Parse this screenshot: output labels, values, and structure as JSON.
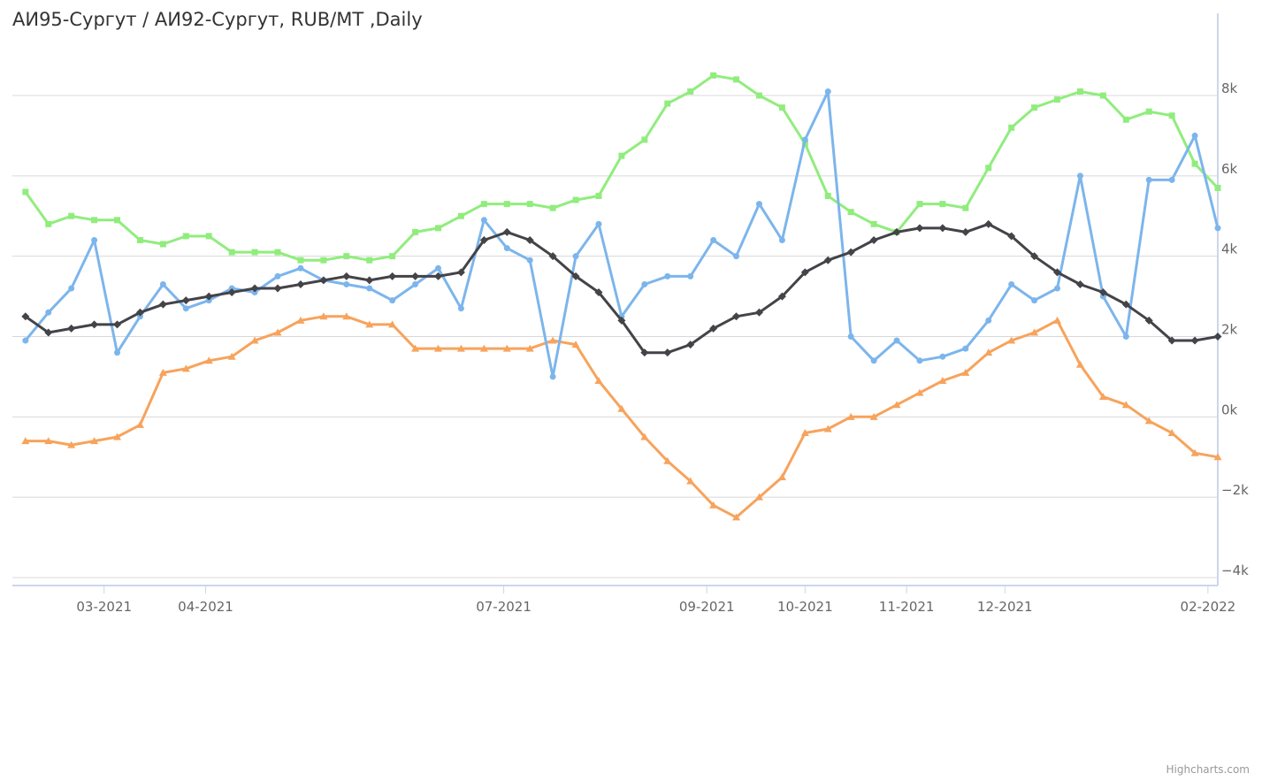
{
  "chart_data": {
    "type": "line",
    "title": "АИ95-Сургут / АИ92-Сургут, RUB/MT ,Daily",
    "credits": "Highcharts.com",
    "x_dates": [
      "2021-02-05",
      "2021-02-12",
      "2021-02-19",
      "2021-02-26",
      "2021-03-05",
      "2021-03-12",
      "2021-03-19",
      "2021-03-26",
      "2021-04-02",
      "2021-04-09",
      "2021-04-16",
      "2021-04-23",
      "2021-04-30",
      "2021-05-07",
      "2021-05-14",
      "2021-05-21",
      "2021-05-28",
      "2021-06-04",
      "2021-06-11",
      "2021-06-18",
      "2021-06-25",
      "2021-07-02",
      "2021-07-09",
      "2021-07-16",
      "2021-07-23",
      "2021-07-30",
      "2021-08-06",
      "2021-08-13",
      "2021-08-20",
      "2021-08-27",
      "2021-09-03",
      "2021-09-10",
      "2021-09-17",
      "2021-09-24",
      "2021-10-01",
      "2021-10-08",
      "2021-10-15",
      "2021-10-22",
      "2021-10-29",
      "2021-11-05",
      "2021-11-12",
      "2021-11-19",
      "2021-11-26",
      "2021-12-03",
      "2021-12-10",
      "2021-12-17",
      "2021-12-24",
      "2021-12-31",
      "2022-01-07",
      "2022-01-14",
      "2022-01-21",
      "2022-01-28",
      "2022-02-04"
    ],
    "series": [
      {
        "color": "#7cb5ec",
        "marker": "circle",
        "values": [
          1900,
          2600,
          3200,
          4400,
          1600,
          2500,
          3300,
          2700,
          2900,
          3200,
          3100,
          3500,
          3700,
          3400,
          3300,
          3200,
          2900,
          3300,
          3700,
          2700,
          4900,
          4200,
          3900,
          1000,
          4000,
          4800,
          2500,
          3300,
          3500,
          3500,
          4400,
          4000,
          5300,
          4400,
          6900,
          8100,
          2000,
          1400,
          1900,
          1400,
          1500,
          1700,
          2400,
          3300,
          2900,
          3200,
          6000,
          3000,
          2000,
          5900,
          5900,
          7000,
          4700
        ]
      },
      {
        "color": "#434348",
        "marker": "diamond",
        "values": [
          2500,
          2100,
          2200,
          2300,
          2300,
          2600,
          2800,
          2900,
          3000,
          3100,
          3200,
          3200,
          3300,
          3400,
          3500,
          3400,
          3500,
          3500,
          3500,
          3600,
          4400,
          4600,
          4400,
          4000,
          3500,
          3100,
          2400,
          1600,
          1600,
          1800,
          2200,
          2500,
          2600,
          3000,
          3600,
          3900,
          4100,
          4400,
          4600,
          4700,
          4700,
          4600,
          4800,
          4500,
          4000,
          3600,
          3300,
          3100,
          2800,
          2400,
          1900,
          1900,
          2000
        ]
      },
      {
        "color": "#90ed7d",
        "marker": "square",
        "values": [
          5600,
          4800,
          5000,
          4900,
          4900,
          4400,
          4300,
          4500,
          4500,
          4100,
          4100,
          4100,
          3900,
          3900,
          4000,
          3900,
          4000,
          4600,
          4700,
          5000,
          5300,
          5300,
          5300,
          5200,
          5400,
          5500,
          6500,
          6900,
          7800,
          8100,
          8500,
          8400,
          8000,
          7700,
          6800,
          5500,
          5100,
          4800,
          4600,
          5300,
          5300,
          5200,
          6200,
          7200,
          7700,
          7900,
          8100,
          8000,
          7400,
          7600,
          7500,
          6300,
          5700
        ]
      },
      {
        "color": "#f7a35c",
        "marker": "triangle",
        "values": [
          -600,
          -600,
          -700,
          -600,
          -500,
          -200,
          1100,
          1200,
          1400,
          1500,
          1900,
          2100,
          2400,
          2500,
          2500,
          2300,
          2300,
          1700,
          1700,
          1700,
          1700,
          1700,
          1700,
          1900,
          1800,
          900,
          200,
          -500,
          -1100,
          -1600,
          -2200,
          -2500,
          -2000,
          -1500,
          -400,
          -300,
          0,
          0,
          300,
          600,
          900,
          1100,
          1600,
          1900,
          2100,
          2400,
          1300,
          500,
          300,
          -100,
          -400,
          -900,
          -1000
        ]
      }
    ],
    "x_axis": {
      "tick_labels": [
        "03-2021",
        "04-2021",
        "07-2021",
        "09-2021",
        "10-2021",
        "11-2021",
        "12-2021",
        "02-2022"
      ],
      "tick_dates": [
        "2021-03-01",
        "2021-04-01",
        "2021-07-01",
        "2021-09-01",
        "2021-10-01",
        "2021-11-01",
        "2021-12-01",
        "2022-02-01"
      ],
      "range": [
        "2021-02-01",
        "2022-02-04"
      ]
    },
    "y_axis": {
      "tick_labels": [
        "8k",
        "6k",
        "4k",
        "2k",
        "0k",
        "−2k",
        "−4k"
      ],
      "tick_values": [
        8000,
        6000,
        4000,
        2000,
        0,
        -2000,
        -4000
      ],
      "range": [
        -4000,
        8000
      ],
      "gridlines": true,
      "position": "right"
    }
  }
}
